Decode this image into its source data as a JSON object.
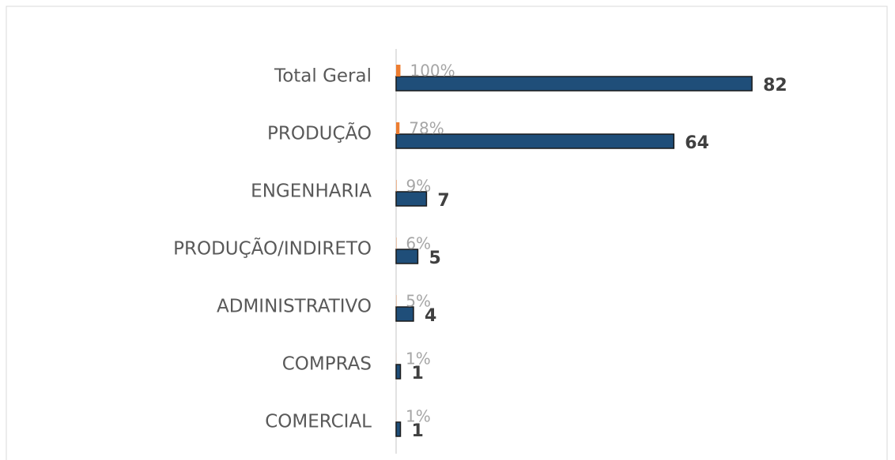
{
  "chart_data": {
    "type": "bar",
    "orientation": "horizontal",
    "categories": [
      "Total Geral",
      "PRODUÇÃO",
      "ENGENHARIA",
      "PRODUÇÃO/INDIRETO",
      "ADMINISTRATIVO",
      "COMPRAS",
      "COMERCIAL"
    ],
    "series": [
      {
        "color": "#1f4e79",
        "values": [
          82,
          64,
          7,
          5,
          4,
          1,
          1
        ]
      },
      {
        "color": "#ed7d31",
        "values": [
          1,
          0.78,
          0.09,
          0.06,
          0.05,
          0.01,
          0.01
        ],
        "value_labels": [
          "100%",
          "78%",
          "9%",
          "6%",
          "5%",
          "1%",
          "1%"
        ]
      }
    ],
    "xlim": [
      0,
      90
    ]
  }
}
